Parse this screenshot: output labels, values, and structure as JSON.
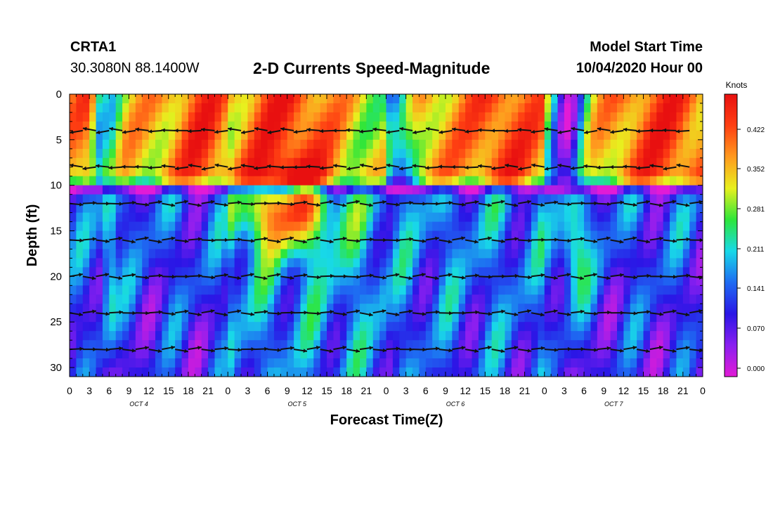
{
  "header": {
    "station": "CRTA1",
    "location": "30.3080N 88.1400W",
    "title": "2-D Currents Speed-Magnitude",
    "start_label": "Model Start Time",
    "start_value": "10/04/2020 Hour 00"
  },
  "colorbar": {
    "title": "Knots",
    "ticks": [
      "0.422",
      "0.352",
      "0.281",
      "0.211",
      "0.141",
      "0.070",
      "0.000"
    ],
    "stops": [
      "#e21bd6",
      "#8a1ff0",
      "#2a16e6",
      "#1e6bf2",
      "#18d9e8",
      "#2ee63a",
      "#e8f01e",
      "#ff9a1e",
      "#ff3f12",
      "#e81010"
    ]
  },
  "chart_data": {
    "type": "heatmap",
    "xlabel": "Forecast Time(Z)",
    "ylabel": "Depth (ft)",
    "x_ticks": [
      "0",
      "3",
      "6",
      "9",
      "12",
      "15",
      "18",
      "21",
      "0",
      "3",
      "6",
      "9",
      "12",
      "15",
      "18",
      "21",
      "0",
      "3",
      "6",
      "9",
      "12",
      "15",
      "18",
      "21",
      "0",
      "3",
      "6",
      "9",
      "12",
      "15",
      "18",
      "21",
      "0"
    ],
    "day_labels": [
      "OCT 4",
      "OCT 5",
      "OCT 6",
      "OCT 7"
    ],
    "y_ticks": [
      "0",
      "5",
      "10",
      "15",
      "20",
      "25",
      "30"
    ],
    "xlim": [
      0,
      96
    ],
    "ylim": [
      0,
      31
    ],
    "depths": [
      4,
      8,
      12,
      16,
      20,
      24,
      28
    ],
    "speed_range": [
      0.0,
      0.49
    ],
    "arrow_interval_hours": 2
  }
}
